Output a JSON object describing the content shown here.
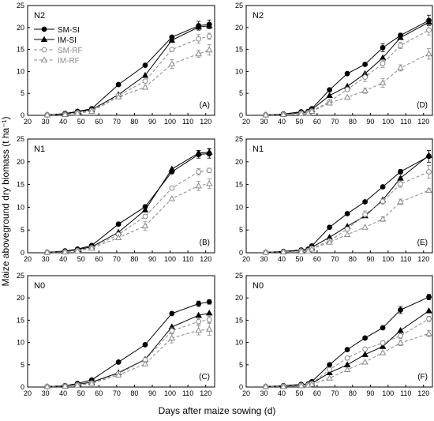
{
  "figure": {
    "ylabel": "Maize aboveground dry biomass (t ha⁻¹)",
    "xlabel": "Days after maize sowing (d)"
  },
  "colors": {
    "series": [
      "#000000",
      "#000000",
      "#8a8a8a",
      "#8a8a8a"
    ],
    "axis": "#000000"
  },
  "chart_data": [
    {
      "type": "line",
      "panel_label": "(A)",
      "group_label": "N2",
      "xlim": [
        20,
        125
      ],
      "ylim": [
        0,
        25
      ],
      "xticks": [
        20,
        30,
        40,
        50,
        60,
        70,
        80,
        90,
        100,
        110,
        120
      ],
      "yticks": [
        0,
        5,
        10,
        15,
        20,
        25
      ],
      "legend": {
        "placement": "top-left"
      },
      "series": [
        {
          "name": "SM-SI",
          "marker": "filled-circle",
          "line": "solid",
          "x": [
            31,
            41,
            48,
            56,
            71,
            86,
            101,
            116,
            122
          ],
          "y": [
            0.1,
            0.4,
            0.9,
            1.5,
            7.0,
            11.4,
            17.8,
            20.4,
            20.7
          ],
          "err": [
            0,
            0,
            0,
            0,
            0,
            0,
            0,
            1.0,
            1.0
          ]
        },
        {
          "name": "IM-SI",
          "marker": "filled-triangle",
          "line": "solid",
          "x": [
            31,
            41,
            48,
            56,
            71,
            86,
            101,
            116,
            122
          ],
          "y": [
            0.1,
            0.3,
            0.8,
            1.3,
            4.7,
            9.1,
            17.1,
            20.1,
            20.4
          ],
          "err": [
            0,
            0,
            0,
            0,
            0,
            0,
            0,
            0,
            0
          ]
        },
        {
          "name": "SM-RF",
          "marker": "open-circle",
          "line": "dashed",
          "x": [
            31,
            41,
            48,
            56,
            71,
            86,
            101,
            116,
            122
          ],
          "y": [
            0.1,
            0.2,
            0.6,
            1.1,
            4.5,
            7.8,
            15.0,
            17.4,
            18.0
          ],
          "err": [
            0,
            0,
            0,
            0,
            0,
            0,
            0,
            1.0,
            0.7
          ]
        },
        {
          "name": "IM-RF",
          "marker": "open-triangle",
          "line": "dashed",
          "x": [
            31,
            41,
            48,
            56,
            71,
            86,
            101,
            116,
            122
          ],
          "y": [
            0.1,
            0.2,
            0.5,
            0.9,
            4.2,
            6.4,
            11.7,
            14.0,
            14.9
          ],
          "err": [
            0,
            0,
            0,
            0,
            0,
            0,
            1.0,
            0.8,
            1.2
          ]
        }
      ]
    },
    {
      "type": "line",
      "panel_label": "(D)",
      "group_label": "N2",
      "xlim": [
        20,
        125
      ],
      "ylim": [
        0,
        25
      ],
      "xticks": [
        20,
        30,
        40,
        50,
        60,
        70,
        80,
        90,
        100,
        110,
        120
      ],
      "yticks": [
        0,
        5,
        10,
        15,
        20,
        25
      ],
      "series": [
        {
          "name": "SM-SI",
          "marker": "filled-circle",
          "line": "solid",
          "x": [
            31,
            41,
            51,
            55,
            57,
            67,
            77,
            87,
            97,
            107,
            123
          ],
          "y": [
            0.1,
            0.3,
            0.8,
            0.9,
            1.5,
            5.8,
            9.5,
            11.6,
            15.4,
            18.2,
            21.6
          ],
          "err": [
            0,
            0,
            0,
            0,
            0,
            0,
            0,
            0,
            0.9,
            0.5,
            1.2
          ]
        },
        {
          "name": "IM-SI",
          "marker": "filled-triangle",
          "line": "solid",
          "x": [
            31,
            41,
            51,
            55,
            57,
            67,
            77,
            87,
            97,
            107,
            123
          ],
          "y": [
            0.1,
            0.2,
            0.6,
            0.7,
            1.3,
            4.5,
            6.6,
            9.5,
            13.1,
            17.7,
            21.2
          ],
          "err": [
            0,
            0,
            0,
            0,
            0,
            0,
            0,
            0,
            0,
            0,
            0
          ]
        },
        {
          "name": "SM-RF",
          "marker": "open-circle",
          "line": "dashed",
          "x": [
            31,
            41,
            51,
            55,
            57,
            67,
            77,
            87,
            97,
            107,
            123
          ],
          "y": [
            0.1,
            0.2,
            0.5,
            0.6,
            1.0,
            3.1,
            5.9,
            8.7,
            11.8,
            15.9,
            19.4
          ],
          "err": [
            0,
            0,
            0,
            0,
            0,
            0,
            0,
            1.0,
            0.9,
            0.7,
            1.1
          ]
        },
        {
          "name": "IM-RF",
          "marker": "open-triangle",
          "line": "dashed",
          "x": [
            31,
            41,
            51,
            55,
            57,
            67,
            77,
            87,
            97,
            107,
            123
          ],
          "y": [
            0.1,
            0.2,
            0.4,
            0.5,
            0.9,
            2.8,
            4.1,
            5.6,
            7.4,
            10.8,
            14.0
          ],
          "err": [
            0,
            0,
            0,
            0,
            0,
            0,
            0,
            0.6,
            1.0,
            0.7,
            1.2
          ]
        }
      ]
    },
    {
      "type": "line",
      "panel_label": "(B)",
      "group_label": "N1",
      "xlim": [
        20,
        125
      ],
      "ylim": [
        0,
        25
      ],
      "xticks": [
        20,
        30,
        40,
        50,
        60,
        70,
        80,
        90,
        100,
        110,
        120
      ],
      "yticks": [
        0,
        5,
        10,
        15,
        20,
        25
      ],
      "series": [
        {
          "name": "SM-SI",
          "marker": "filled-circle",
          "line": "solid",
          "x": [
            31,
            41,
            48,
            56,
            71,
            86,
            101,
            116,
            122
          ],
          "y": [
            0.1,
            0.4,
            0.8,
            1.6,
            6.3,
            10.1,
            17.8,
            21.6,
            21.8
          ],
          "err": [
            0,
            0,
            0,
            0,
            0,
            0,
            0,
            0.8,
            1.0
          ]
        },
        {
          "name": "IM-SI",
          "marker": "filled-triangle",
          "line": "solid",
          "x": [
            31,
            41,
            48,
            56,
            71,
            86,
            101,
            116,
            122
          ],
          "y": [
            0.1,
            0.3,
            0.7,
            1.3,
            4.5,
            9.4,
            18.4,
            21.9,
            22.1
          ],
          "err": [
            0,
            0,
            0,
            0,
            0,
            0,
            0,
            0.6,
            0.8
          ]
        },
        {
          "name": "SM-RF",
          "marker": "open-circle",
          "line": "dashed",
          "x": [
            31,
            41,
            48,
            56,
            71,
            86,
            101,
            116,
            122
          ],
          "y": [
            0.1,
            0.2,
            0.5,
            1.1,
            4.0,
            8.0,
            14.2,
            17.8,
            18.1
          ],
          "err": [
            0,
            0,
            0,
            0,
            0,
            0,
            0,
            0.7,
            0.5
          ]
        },
        {
          "name": "IM-RF",
          "marker": "open-triangle",
          "line": "dashed",
          "x": [
            31,
            41,
            48,
            56,
            71,
            86,
            101,
            116,
            122
          ],
          "y": [
            0.1,
            0.2,
            0.4,
            1.0,
            3.3,
            5.9,
            11.9,
            14.7,
            15.2
          ],
          "err": [
            0,
            0,
            0,
            0,
            0,
            1.0,
            0,
            1.0,
            1.1
          ]
        }
      ]
    },
    {
      "type": "line",
      "panel_label": "(E)",
      "group_label": "N1",
      "xlim": [
        20,
        125
      ],
      "ylim": [
        0,
        25
      ],
      "xticks": [
        20,
        30,
        40,
        50,
        60,
        70,
        80,
        90,
        100,
        110,
        120
      ],
      "yticks": [
        0,
        5,
        10,
        15,
        20,
        25
      ],
      "series": [
        {
          "name": "SM-SI",
          "marker": "filled-circle",
          "line": "solid",
          "x": [
            31,
            41,
            51,
            55,
            57,
            67,
            77,
            87,
            97,
            107,
            123
          ],
          "y": [
            0.1,
            0.3,
            0.6,
            0.8,
            1.5,
            5.6,
            8.6,
            11.2,
            14.5,
            17.8,
            21.2
          ],
          "err": [
            0,
            0,
            0,
            0,
            0,
            0,
            0,
            0,
            0,
            0.5,
            1.3
          ]
        },
        {
          "name": "IM-SI",
          "marker": "filled-triangle",
          "line": "solid",
          "x": [
            31,
            41,
            51,
            55,
            57,
            67,
            77,
            87,
            97,
            107,
            123
          ],
          "y": [
            0.1,
            0.2,
            0.5,
            0.6,
            1.2,
            3.4,
            5.8,
            8.1,
            11.6,
            16.4,
            21.4
          ],
          "err": [
            0,
            0,
            0,
            0,
            0,
            0,
            0,
            0,
            0,
            0,
            0
          ]
        },
        {
          "name": "SM-RF",
          "marker": "open-circle",
          "line": "dashed",
          "x": [
            31,
            41,
            51,
            55,
            57,
            67,
            77,
            87,
            97,
            107,
            123
          ],
          "y": [
            0.1,
            0.2,
            0.4,
            0.5,
            1.0,
            2.6,
            5.2,
            8.4,
            11.3,
            15.1,
            17.8
          ],
          "err": [
            0,
            0,
            0,
            0,
            0,
            0,
            0,
            0.8,
            0.6,
            0.7,
            1.4
          ]
        },
        {
          "name": "IM-RF",
          "marker": "open-triangle",
          "line": "dashed",
          "x": [
            31,
            41,
            51,
            55,
            57,
            67,
            77,
            87,
            97,
            107,
            123
          ],
          "y": [
            0.1,
            0.2,
            0.3,
            0.4,
            0.8,
            2.3,
            4.0,
            5.6,
            7.4,
            11.2,
            13.7
          ],
          "err": [
            0,
            0,
            0,
            0,
            0,
            0,
            0,
            0,
            0.5,
            0.6,
            0.4
          ]
        }
      ]
    },
    {
      "type": "line",
      "panel_label": "(C)",
      "group_label": "N0",
      "xlim": [
        20,
        125
      ],
      "ylim": [
        0,
        25
      ],
      "xticks": [
        20,
        30,
        40,
        50,
        60,
        70,
        80,
        90,
        100,
        110,
        120
      ],
      "yticks": [
        0,
        5,
        10,
        15,
        20,
        25
      ],
      "series": [
        {
          "name": "SM-SI",
          "marker": "filled-circle",
          "line": "solid",
          "x": [
            31,
            41,
            48,
            56,
            71,
            86,
            101,
            116,
            122
          ],
          "y": [
            0.1,
            0.3,
            0.8,
            1.6,
            5.6,
            9.5,
            16.5,
            18.7,
            19.1
          ],
          "err": [
            0,
            0,
            0,
            0,
            0,
            0,
            0,
            0.6,
            0.5
          ]
        },
        {
          "name": "IM-SI",
          "marker": "filled-triangle",
          "line": "solid",
          "x": [
            31,
            41,
            48,
            56,
            71,
            86,
            101,
            116,
            122
          ],
          "y": [
            0.1,
            0.2,
            0.6,
            1.1,
            3.2,
            6.2,
            13.5,
            16.1,
            16.6
          ],
          "err": [
            0,
            0,
            0,
            0,
            0,
            0,
            0,
            0,
            0
          ]
        },
        {
          "name": "SM-RF",
          "marker": "open-circle",
          "line": "dashed",
          "x": [
            31,
            41,
            48,
            56,
            71,
            86,
            101,
            116,
            122
          ],
          "y": [
            0.1,
            0.2,
            0.5,
            0.9,
            3.0,
            6.1,
            12.6,
            14.7,
            15.1
          ],
          "err": [
            0,
            0,
            0,
            0,
            0,
            0,
            0.7,
            0.7,
            0.8
          ]
        },
        {
          "name": "IM-RF",
          "marker": "open-triangle",
          "line": "dashed",
          "x": [
            31,
            41,
            48,
            56,
            71,
            86,
            101,
            116,
            122
          ],
          "y": [
            0.1,
            0.2,
            0.4,
            0.8,
            2.7,
            5.2,
            11.0,
            12.7,
            13.0
          ],
          "err": [
            0,
            0,
            0,
            0,
            0,
            0,
            1.1,
            1.0,
            1.4
          ]
        }
      ]
    },
    {
      "type": "line",
      "panel_label": "(F)",
      "group_label": "N0",
      "xlim": [
        20,
        125
      ],
      "ylim": [
        0,
        25
      ],
      "xticks": [
        20,
        30,
        40,
        50,
        60,
        70,
        80,
        90,
        100,
        110,
        120
      ],
      "yticks": [
        0,
        5,
        10,
        15,
        20,
        25
      ],
      "series": [
        {
          "name": "SM-SI",
          "marker": "filled-circle",
          "line": "solid",
          "x": [
            31,
            41,
            51,
            55,
            57,
            67,
            77,
            87,
            97,
            107,
            123
          ],
          "y": [
            0.1,
            0.3,
            0.6,
            0.7,
            1.2,
            5.0,
            8.4,
            11.0,
            13.3,
            17.3,
            20.2
          ],
          "err": [
            0,
            0,
            0,
            0,
            0,
            0,
            0,
            0,
            0,
            0.8,
            0.6
          ]
        },
        {
          "name": "IM-SI",
          "marker": "filled-triangle",
          "line": "solid",
          "x": [
            31,
            41,
            51,
            55,
            57,
            67,
            77,
            87,
            97,
            107,
            123
          ],
          "y": [
            0.1,
            0.2,
            0.4,
            0.5,
            0.8,
            3.2,
            5.0,
            7.3,
            9.1,
            12.7,
            17.1
          ],
          "err": [
            0,
            0,
            0,
            0,
            0,
            0,
            0,
            0,
            0,
            0,
            0
          ]
        },
        {
          "name": "SM-RF",
          "marker": "open-circle",
          "line": "dashed",
          "x": [
            31,
            41,
            51,
            55,
            57,
            67,
            77,
            87,
            97,
            107,
            123
          ],
          "y": [
            0.1,
            0.2,
            0.4,
            0.5,
            0.8,
            3.9,
            6.5,
            8.5,
            9.9,
            11.5,
            15.3
          ],
          "err": [
            0,
            0,
            0,
            0,
            0,
            0,
            0,
            0,
            0,
            0.6,
            0.6
          ]
        },
        {
          "name": "IM-RF",
          "marker": "open-triangle",
          "line": "dashed",
          "x": [
            31,
            41,
            51,
            55,
            57,
            67,
            77,
            87,
            97,
            107,
            123
          ],
          "y": [
            0.1,
            0.1,
            0.3,
            0.4,
            0.6,
            2.0,
            3.9,
            5.6,
            7.7,
            9.9,
            12.0
          ],
          "err": [
            0,
            0,
            0,
            0,
            0,
            0,
            0,
            0,
            0,
            0.6,
            0.7
          ]
        }
      ]
    }
  ]
}
